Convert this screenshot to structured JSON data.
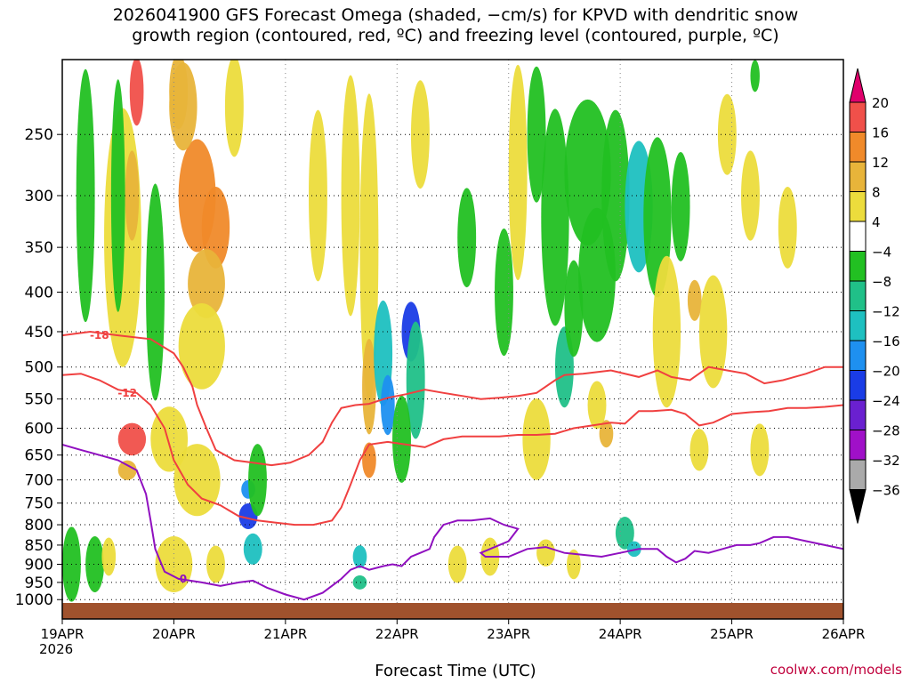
{
  "title_line1": "2026041900 GFS Forecast Omega (shaded, −cm/s) for KPVD with dendritic snow",
  "title_line2": "growth region (contoured, red, ºC) and freezing level (contoured, purple, ºC)",
  "credit": "coolwx.com/models",
  "chart_data": {
    "type": "heatmap",
    "title": "2026041900 GFS Forecast Omega (shaded, −cm/s) for KPVD with dendritic snow growth region (contoured, red, ºC) and freezing level (contoured, purple, ºC)",
    "xlabel": "Forecast Time (UTC)",
    "year_label": "2026",
    "x_ticks": [
      "19APR",
      "20APR",
      "21APR",
      "22APR",
      "23APR",
      "24APR",
      "25APR",
      "26APR"
    ],
    "x_range_hours": [
      0,
      168
    ],
    "y_ticks": [
      250,
      300,
      350,
      400,
      450,
      500,
      550,
      600,
      650,
      700,
      750,
      800,
      850,
      900,
      950,
      1000
    ],
    "ylim": [
      200,
      1010
    ],
    "y_scale": "log-pressure (inverted)",
    "grid": true,
    "colorbar": {
      "labels": [
        "20",
        "16",
        "12",
        "8",
        "4",
        "−4",
        "−8",
        "−12",
        "−16",
        "−20",
        "−24",
        "−28",
        "−32",
        "−36"
      ],
      "bins": [
        {
          "range": ">20",
          "color": "#e0006c"
        },
        {
          "range": "16 to 20",
          "color": "#f0504a"
        },
        {
          "range": "12 to 16",
          "color": "#f08a2a"
        },
        {
          "range": "8 to 12",
          "color": "#e8b43a"
        },
        {
          "range": "4 to 8",
          "color": "#ecdc3c"
        },
        {
          "range": "-4 to 4",
          "color": "#ffffff"
        },
        {
          "range": "-8 to -4",
          "color": "#22c022"
        },
        {
          "range": "-12 to -8",
          "color": "#20c088"
        },
        {
          "range": "-16 to -12",
          "color": "#1ec0c0"
        },
        {
          "range": "-20 to -16",
          "color": "#1e90f0"
        },
        {
          "range": "-24 to -20",
          "color": "#1a3ce6"
        },
        {
          "range": "-28 to -24",
          "color": "#6a20d0"
        },
        {
          "range": "-32 to -28",
          "color": "#a010c8"
        },
        {
          "range": "-36 to -32",
          "color": "#aaaaaa"
        },
        {
          "range": "<-36",
          "color": "#000000"
        }
      ]
    },
    "shading_blobs": [
      {
        "t": 13,
        "p": 340,
        "dt": 4,
        "dp": 250,
        "value": 6
      },
      {
        "t": 16,
        "p": 220,
        "dt": 1.5,
        "dp": 50,
        "value": 17
      },
      {
        "t": 15,
        "p": 300,
        "dt": 1.5,
        "dp": 80,
        "value": 10
      },
      {
        "t": 25,
        "p": 220,
        "dt": 2,
        "dp": 60,
        "value": 10
      },
      {
        "t": 29,
        "p": 300,
        "dt": 4,
        "dp": 100,
        "value": 14
      },
      {
        "t": 26,
        "p": 230,
        "dt": 3,
        "dp": 60,
        "value": 10
      },
      {
        "t": 33,
        "p": 330,
        "dt": 3,
        "dp": 80,
        "value": 14
      },
      {
        "t": 31,
        "p": 390,
        "dt": 4,
        "dp": 80,
        "value": 10
      },
      {
        "t": 30,
        "p": 470,
        "dt": 5,
        "dp": 120,
        "value": 6
      },
      {
        "t": 37,
        "p": 230,
        "dt": 2,
        "dp": 80,
        "value": 8
      },
      {
        "t": 20,
        "p": 400,
        "dt": 2,
        "dp": 250,
        "value": -6
      },
      {
        "t": 12,
        "p": 300,
        "dt": 1.5,
        "dp": 200,
        "value": -6
      },
      {
        "t": 5,
        "p": 300,
        "dt": 2,
        "dp": 250,
        "value": -6
      },
      {
        "t": 15,
        "p": 620,
        "dt": 3,
        "dp": 60,
        "value": 18
      },
      {
        "t": 14,
        "p": 680,
        "dt": 2,
        "dp": 40,
        "value": 10
      },
      {
        "t": 23,
        "p": 620,
        "dt": 4,
        "dp": 120,
        "value": 6
      },
      {
        "t": 29,
        "p": 700,
        "dt": 5,
        "dp": 150,
        "value": 6
      },
      {
        "t": 40,
        "p": 720,
        "dt": 1.5,
        "dp": 40,
        "value": -18
      },
      {
        "t": 40,
        "p": 780,
        "dt": 2,
        "dp": 60,
        "value": -22
      },
      {
        "t": 41,
        "p": 860,
        "dt": 2,
        "dp": 80,
        "value": -12
      },
      {
        "t": 42,
        "p": 700,
        "dt": 2,
        "dp": 150,
        "value": -6
      },
      {
        "t": 55,
        "p": 300,
        "dt": 2,
        "dp": 150,
        "value": 6
      },
      {
        "t": 62,
        "p": 300,
        "dt": 2,
        "dp": 220,
        "value": 6
      },
      {
        "t": 66,
        "p": 350,
        "dt": 2,
        "dp": 300,
        "value": 6
      },
      {
        "t": 66,
        "p": 530,
        "dt": 1.5,
        "dp": 150,
        "value": 10
      },
      {
        "t": 66,
        "p": 660,
        "dt": 1.5,
        "dp": 70,
        "value": 14
      },
      {
        "t": 69,
        "p": 480,
        "dt": 2,
        "dp": 150,
        "value": -12
      },
      {
        "t": 70,
        "p": 560,
        "dt": 1.5,
        "dp": 100,
        "value": -18
      },
      {
        "t": 75,
        "p": 450,
        "dt": 2,
        "dp": 80,
        "value": -22
      },
      {
        "t": 76,
        "p": 520,
        "dt": 2,
        "dp": 180,
        "value": -10
      },
      {
        "t": 73,
        "p": 620,
        "dt": 2,
        "dp": 160,
        "value": -6
      },
      {
        "t": 64,
        "p": 880,
        "dt": 1.5,
        "dp": 60,
        "value": -14
      },
      {
        "t": 64,
        "p": 950,
        "dt": 1.5,
        "dp": 40,
        "value": -10
      },
      {
        "t": 77,
        "p": 250,
        "dt": 2,
        "dp": 80,
        "value": 6
      },
      {
        "t": 87,
        "p": 340,
        "dt": 2,
        "dp": 100,
        "value": -6
      },
      {
        "t": 95,
        "p": 400,
        "dt": 2,
        "dp": 150,
        "value": -6
      },
      {
        "t": 98,
        "p": 280,
        "dt": 2,
        "dp": 200,
        "value": 6
      },
      {
        "t": 102,
        "p": 250,
        "dt": 2,
        "dp": 100,
        "value": -6
      },
      {
        "t": 106,
        "p": 320,
        "dt": 3,
        "dp": 200,
        "value": -6
      },
      {
        "t": 108,
        "p": 500,
        "dt": 2,
        "dp": 120,
        "value": -10
      },
      {
        "t": 110,
        "p": 420,
        "dt": 2,
        "dp": 120,
        "value": -6
      },
      {
        "t": 113,
        "p": 280,
        "dt": 5,
        "dp": 120,
        "value": -6
      },
      {
        "t": 115,
        "p": 380,
        "dt": 4,
        "dp": 150,
        "value": -6
      },
      {
        "t": 119,
        "p": 300,
        "dt": 3,
        "dp": 150,
        "value": -6
      },
      {
        "t": 124,
        "p": 310,
        "dt": 3,
        "dp": 120,
        "value": -12
      },
      {
        "t": 128,
        "p": 320,
        "dt": 3,
        "dp": 150,
        "value": -6
      },
      {
        "t": 133,
        "p": 310,
        "dt": 2,
        "dp": 100,
        "value": -6
      },
      {
        "t": 115,
        "p": 560,
        "dt": 2,
        "dp": 80,
        "value": 6
      },
      {
        "t": 117,
        "p": 610,
        "dt": 1.5,
        "dp": 50,
        "value": 10
      },
      {
        "t": 102,
        "p": 620,
        "dt": 3,
        "dp": 150,
        "value": 6
      },
      {
        "t": 104,
        "p": 870,
        "dt": 2,
        "dp": 70,
        "value": 6
      },
      {
        "t": 121,
        "p": 820,
        "dt": 2,
        "dp": 80,
        "value": -8
      },
      {
        "t": 123,
        "p": 860,
        "dt": 1.5,
        "dp": 40,
        "value": -14
      },
      {
        "t": 130,
        "p": 450,
        "dt": 3,
        "dp": 200,
        "value": 6
      },
      {
        "t": 136,
        "p": 410,
        "dt": 1.5,
        "dp": 50,
        "value": 10
      },
      {
        "t": 140,
        "p": 450,
        "dt": 3,
        "dp": 150,
        "value": 6
      },
      {
        "t": 148,
        "p": 300,
        "dt": 2,
        "dp": 80,
        "value": 6
      },
      {
        "t": 156,
        "p": 330,
        "dt": 2,
        "dp": 80,
        "value": 6
      },
      {
        "t": 137,
        "p": 640,
        "dt": 2,
        "dp": 80,
        "value": 8
      },
      {
        "t": 150,
        "p": 640,
        "dt": 2,
        "dp": 100,
        "value": 6
      },
      {
        "t": 143,
        "p": 250,
        "dt": 2,
        "dp": 60,
        "value": 6
      },
      {
        "t": 149,
        "p": 210,
        "dt": 1,
        "dp": 20,
        "value": -6
      },
      {
        "t": 2,
        "p": 900,
        "dt": 2,
        "dp": 200,
        "value": -6
      },
      {
        "t": 7,
        "p": 900,
        "dt": 2,
        "dp": 150,
        "value": -6
      },
      {
        "t": 10,
        "p": 880,
        "dt": 1.5,
        "dp": 100,
        "value": 6
      },
      {
        "t": 24,
        "p": 900,
        "dt": 4,
        "dp": 150,
        "value": 6
      },
      {
        "t": 33,
        "p": 900,
        "dt": 2,
        "dp": 100,
        "value": 6
      },
      {
        "t": 85,
        "p": 900,
        "dt": 2,
        "dp": 100,
        "value": 6
      },
      {
        "t": 92,
        "p": 880,
        "dt": 2,
        "dp": 100,
        "value": 6
      },
      {
        "t": 110,
        "p": 900,
        "dt": 1.5,
        "dp": 80,
        "value": 6
      }
    ],
    "contours": [
      {
        "label": "-18",
        "color": "#f04040",
        "points": [
          [
            0,
            455
          ],
          [
            6,
            450
          ],
          [
            12,
            455
          ],
          [
            19,
            460
          ],
          [
            24,
            480
          ],
          [
            26,
            500
          ],
          [
            28,
            530
          ],
          [
            29,
            560
          ],
          [
            31,
            600
          ],
          [
            33,
            640
          ],
          [
            37,
            660
          ],
          [
            41,
            665
          ],
          [
            45,
            670
          ],
          [
            49,
            665
          ],
          [
            53,
            650
          ],
          [
            56,
            625
          ],
          [
            58,
            590
          ],
          [
            60,
            565
          ],
          [
            63,
            560
          ],
          [
            66,
            558
          ],
          [
            70,
            548
          ],
          [
            74,
            542
          ],
          [
            78,
            535
          ],
          [
            82,
            540
          ],
          [
            86,
            545
          ],
          [
            90,
            550
          ],
          [
            94,
            548
          ],
          [
            98,
            545
          ],
          [
            102,
            540
          ],
          [
            106,
            520
          ],
          [
            108,
            512
          ],
          [
            112,
            510
          ],
          [
            118,
            505
          ],
          [
            124,
            515
          ],
          [
            128,
            505
          ],
          [
            131,
            515
          ],
          [
            135,
            520
          ],
          [
            139,
            500
          ],
          [
            143,
            505
          ],
          [
            147,
            510
          ],
          [
            151,
            525
          ],
          [
            155,
            520
          ],
          [
            160,
            510
          ],
          [
            164,
            500
          ],
          [
            168,
            500
          ]
        ],
        "label_at": [
          8,
          455
        ]
      }
    ],
    "contours_more": [
      {
        "label": "-12",
        "color": "#f04040",
        "points": [
          [
            0,
            512
          ],
          [
            4,
            510
          ],
          [
            8,
            520
          ],
          [
            12,
            535
          ],
          [
            16,
            540
          ],
          [
            19,
            560
          ],
          [
            22,
            600
          ],
          [
            24,
            660
          ],
          [
            27,
            710
          ],
          [
            30,
            740
          ],
          [
            34,
            755
          ],
          [
            38,
            780
          ],
          [
            42,
            790
          ],
          [
            46,
            795
          ],
          [
            50,
            800
          ],
          [
            54,
            800
          ],
          [
            58,
            790
          ],
          [
            60,
            760
          ],
          [
            62,
            710
          ],
          [
            64,
            660
          ],
          [
            66,
            630
          ],
          [
            70,
            625
          ],
          [
            74,
            630
          ],
          [
            78,
            635
          ],
          [
            82,
            620
          ],
          [
            86,
            615
          ],
          [
            90,
            615
          ],
          [
            94,
            615
          ],
          [
            98,
            612
          ],
          [
            102,
            612
          ],
          [
            106,
            610
          ],
          [
            110,
            600
          ],
          [
            114,
            595
          ],
          [
            118,
            590
          ],
          [
            121,
            592
          ],
          [
            124,
            570
          ],
          [
            127,
            570
          ],
          [
            131,
            568
          ],
          [
            134,
            575
          ],
          [
            137,
            595
          ],
          [
            140,
            590
          ],
          [
            144,
            575
          ],
          [
            148,
            572
          ],
          [
            152,
            570
          ],
          [
            156,
            565
          ],
          [
            160,
            565
          ],
          [
            164,
            563
          ],
          [
            168,
            560
          ]
        ],
        "label_at": [
          14,
          540
        ]
      },
      {
        "label": "0",
        "color": "#9010c0",
        "points": [
          [
            0,
            630
          ],
          [
            4,
            640
          ],
          [
            8,
            650
          ],
          [
            12,
            660
          ],
          [
            16,
            680
          ],
          [
            18,
            730
          ],
          [
            19,
            790
          ],
          [
            20,
            860
          ],
          [
            22,
            920
          ],
          [
            25,
            940
          ],
          [
            30,
            950
          ],
          [
            34,
            960
          ],
          [
            38,
            950
          ],
          [
            41,
            945
          ],
          [
            44,
            965
          ],
          [
            48,
            985
          ],
          [
            52,
            1000
          ],
          [
            56,
            980
          ],
          [
            60,
            940
          ],
          [
            62,
            915
          ],
          [
            64,
            905
          ],
          [
            66,
            915
          ],
          [
            69,
            905
          ],
          [
            71,
            900
          ],
          [
            73,
            905
          ],
          [
            75,
            880
          ],
          [
            77,
            870
          ],
          [
            79,
            860
          ],
          [
            80,
            830
          ],
          [
            82,
            800
          ],
          [
            85,
            790
          ],
          [
            88,
            790
          ],
          [
            92,
            785
          ],
          [
            95,
            800
          ],
          [
            98,
            810
          ],
          [
            96,
            840
          ],
          [
            92,
            860
          ],
          [
            90,
            870
          ],
          [
            91,
            880
          ],
          [
            96,
            880
          ],
          [
            100,
            860
          ],
          [
            104,
            855
          ],
          [
            108,
            870
          ],
          [
            112,
            875
          ],
          [
            116,
            880
          ],
          [
            120,
            870
          ],
          [
            124,
            860
          ],
          [
            128,
            860
          ],
          [
            130,
            880
          ],
          [
            132,
            895
          ],
          [
            134,
            885
          ],
          [
            136,
            865
          ],
          [
            139,
            870
          ],
          [
            142,
            860
          ],
          [
            145,
            850
          ],
          [
            148,
            850
          ],
          [
            150,
            845
          ],
          [
            153,
            830
          ],
          [
            156,
            830
          ],
          [
            160,
            840
          ],
          [
            164,
            850
          ],
          [
            168,
            860
          ]
        ],
        "label_at": [
          26,
          940
        ]
      }
    ],
    "ground_color": "#a0522d"
  }
}
